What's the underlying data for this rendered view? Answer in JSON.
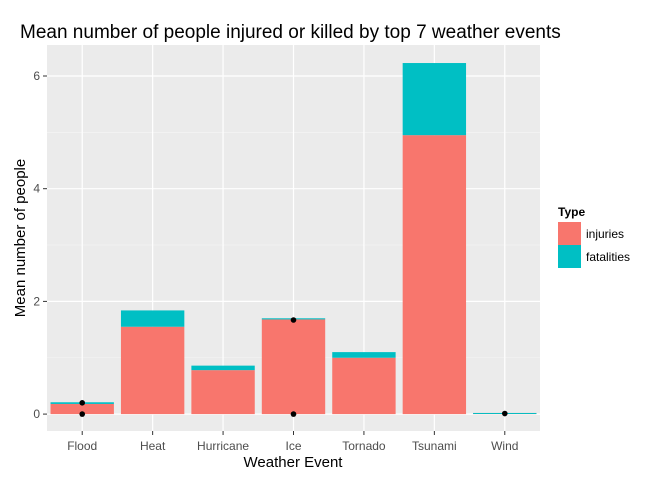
{
  "chart_data": {
    "type": "bar",
    "stacked": true,
    "title": "Mean number of people injured or killed by top 7 weather events",
    "xlabel": "Weather Event",
    "ylabel": "Mean number of people",
    "categories": [
      "Flood",
      "Heat",
      "Hurricane",
      "Ice",
      "Tornado",
      "Tsunami",
      "Wind"
    ],
    "series": [
      {
        "name": "injuries",
        "color": "#f8766d",
        "values": [
          0.18,
          1.55,
          0.78,
          1.68,
          1.0,
          4.95,
          0.02
        ]
      },
      {
        "name": "fatalities",
        "color": "#00bfc4",
        "values": [
          0.03,
          0.29,
          0.08,
          0.02,
          0.1,
          1.28,
          0.0
        ]
      }
    ],
    "points": [
      {
        "category": "Flood",
        "values": [
          0.0,
          0.2
        ]
      },
      {
        "category": "Ice",
        "values": [
          0.0,
          1.67
        ]
      },
      {
        "category": "Wind",
        "values": [
          0.01
        ]
      }
    ],
    "yticks": [
      "0",
      "2",
      "4",
      "6"
    ],
    "ylim": [
      -0.3,
      6.55
    ],
    "legend": {
      "title": "Type",
      "position": "right"
    },
    "grid": true
  }
}
